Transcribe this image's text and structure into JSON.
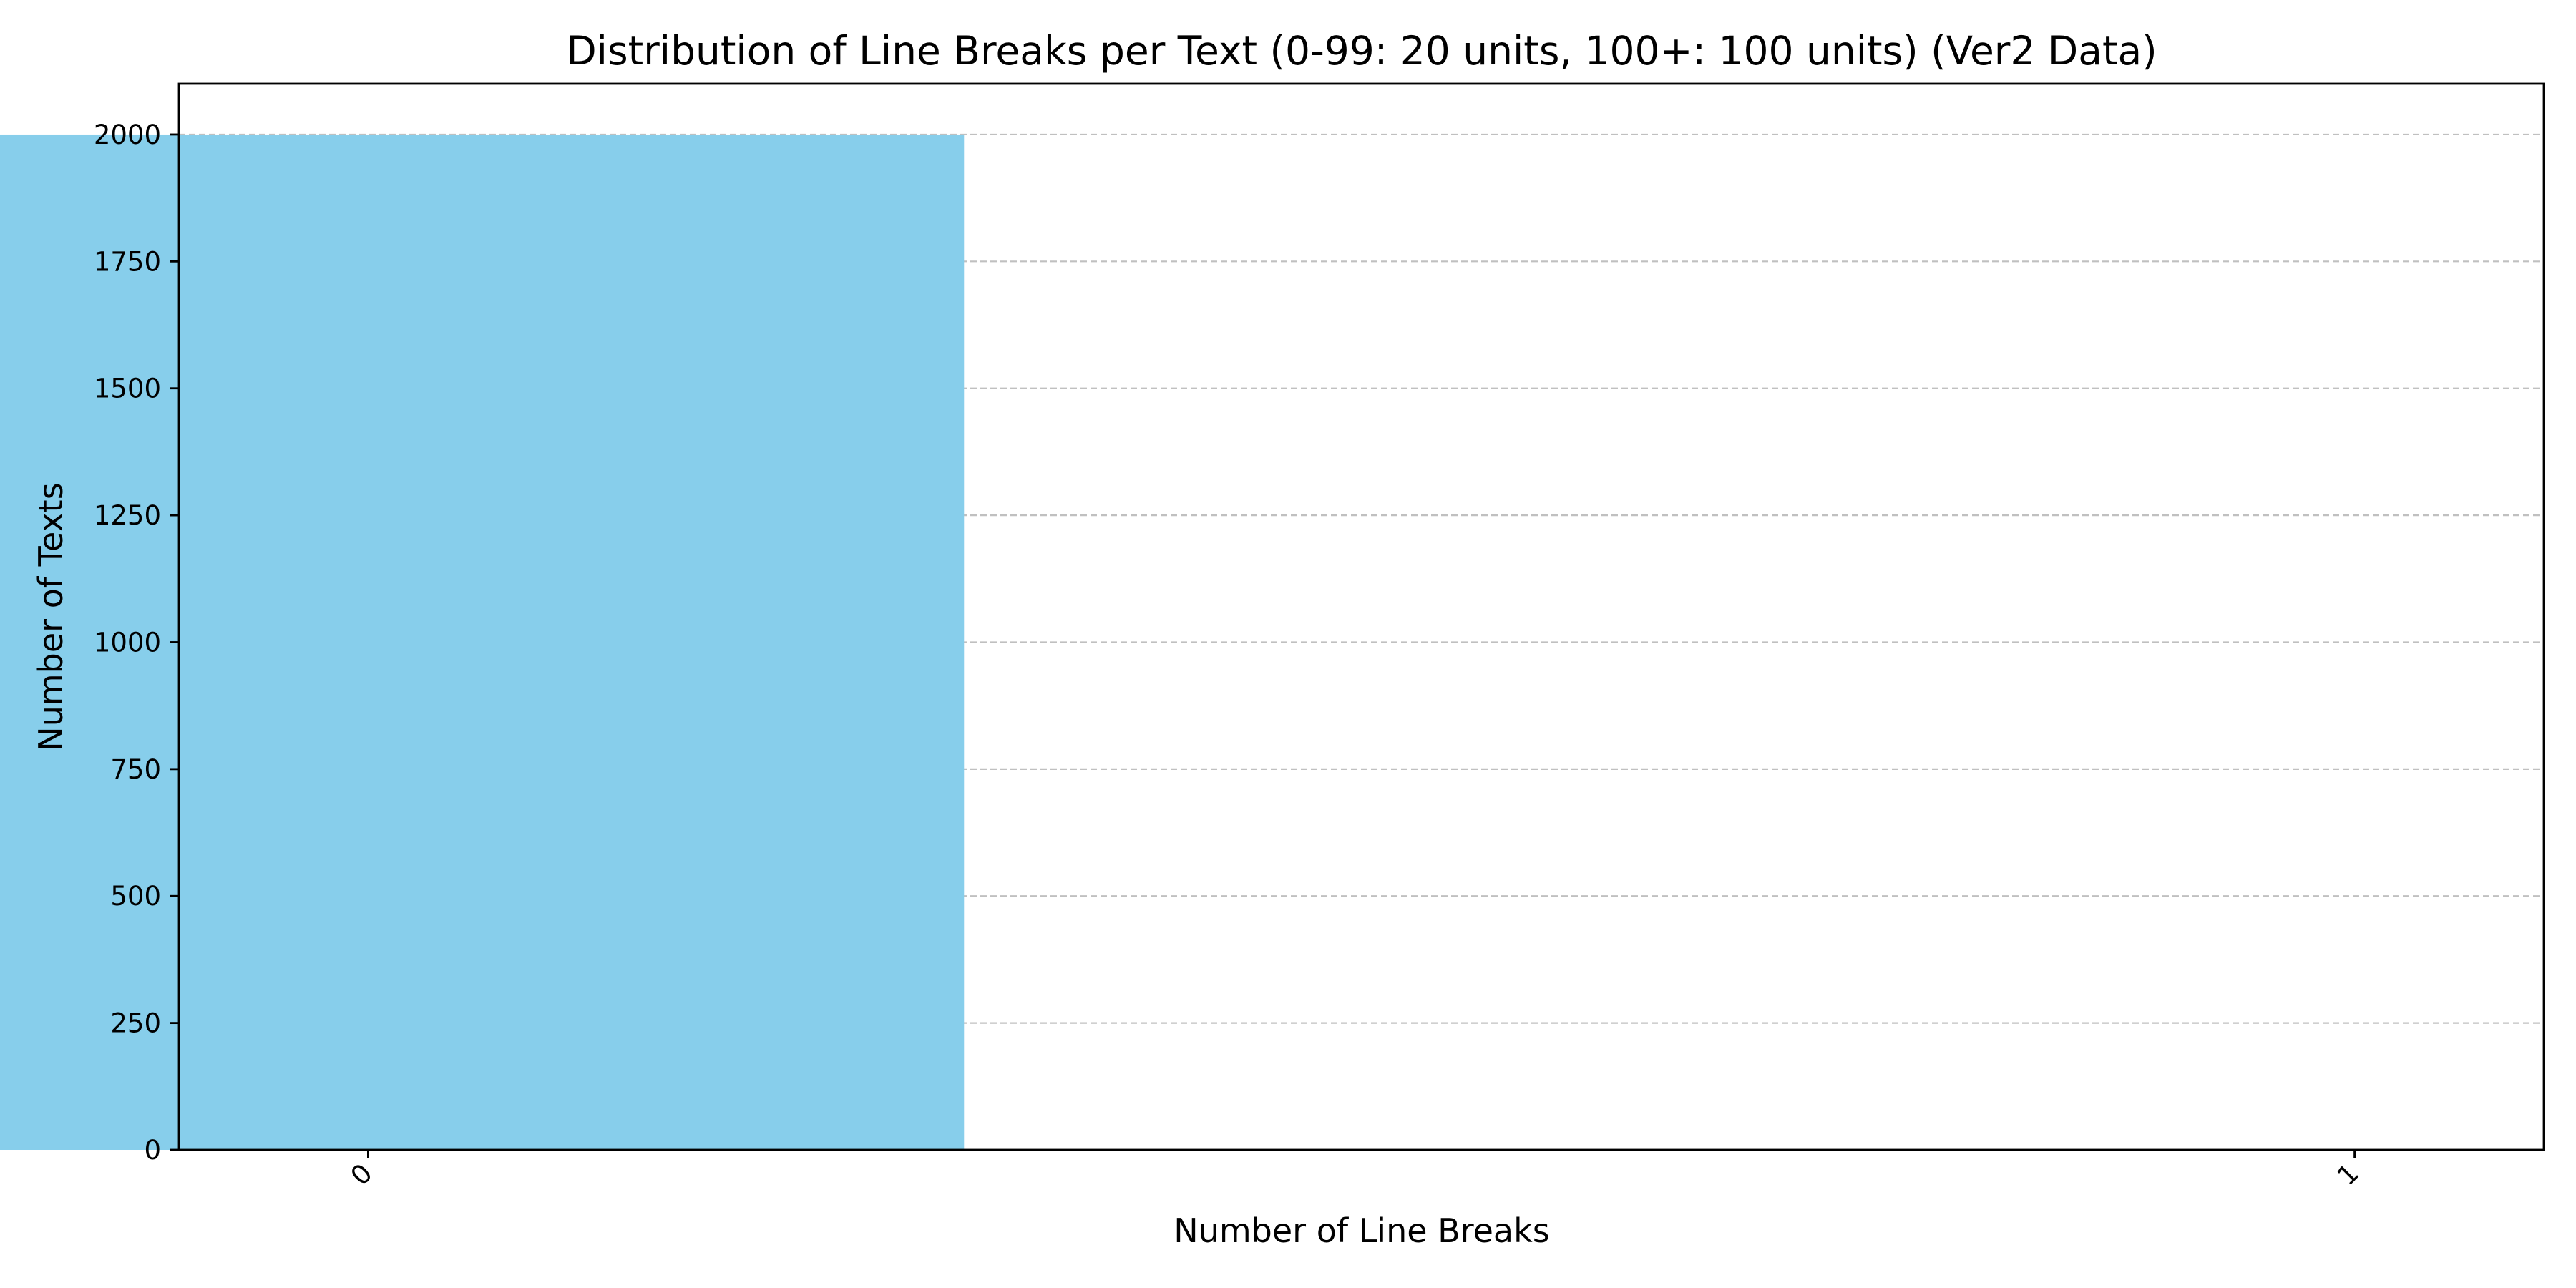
{
  "chart_data": {
    "type": "bar",
    "title": "Distribution of Line Breaks per Text (0-99: 20 units, 100+: 100 units) (Ver2 Data)",
    "xlabel": "Number of Line Breaks",
    "ylabel": "Number of Texts",
    "categories": [
      "0",
      "1"
    ],
    "values": [
      2000,
      0
    ],
    "ylim": [
      0,
      2100
    ],
    "yticks": [
      0,
      250,
      500,
      750,
      1000,
      1250,
      1500,
      1750,
      2000
    ],
    "xtick_rotation": -45,
    "grid": "y-dashed",
    "legend": "none",
    "colors": {
      "bar": "#87CEEB",
      "grid": "#c0c0c0",
      "axis": "#000000",
      "background": "#ffffff"
    }
  }
}
